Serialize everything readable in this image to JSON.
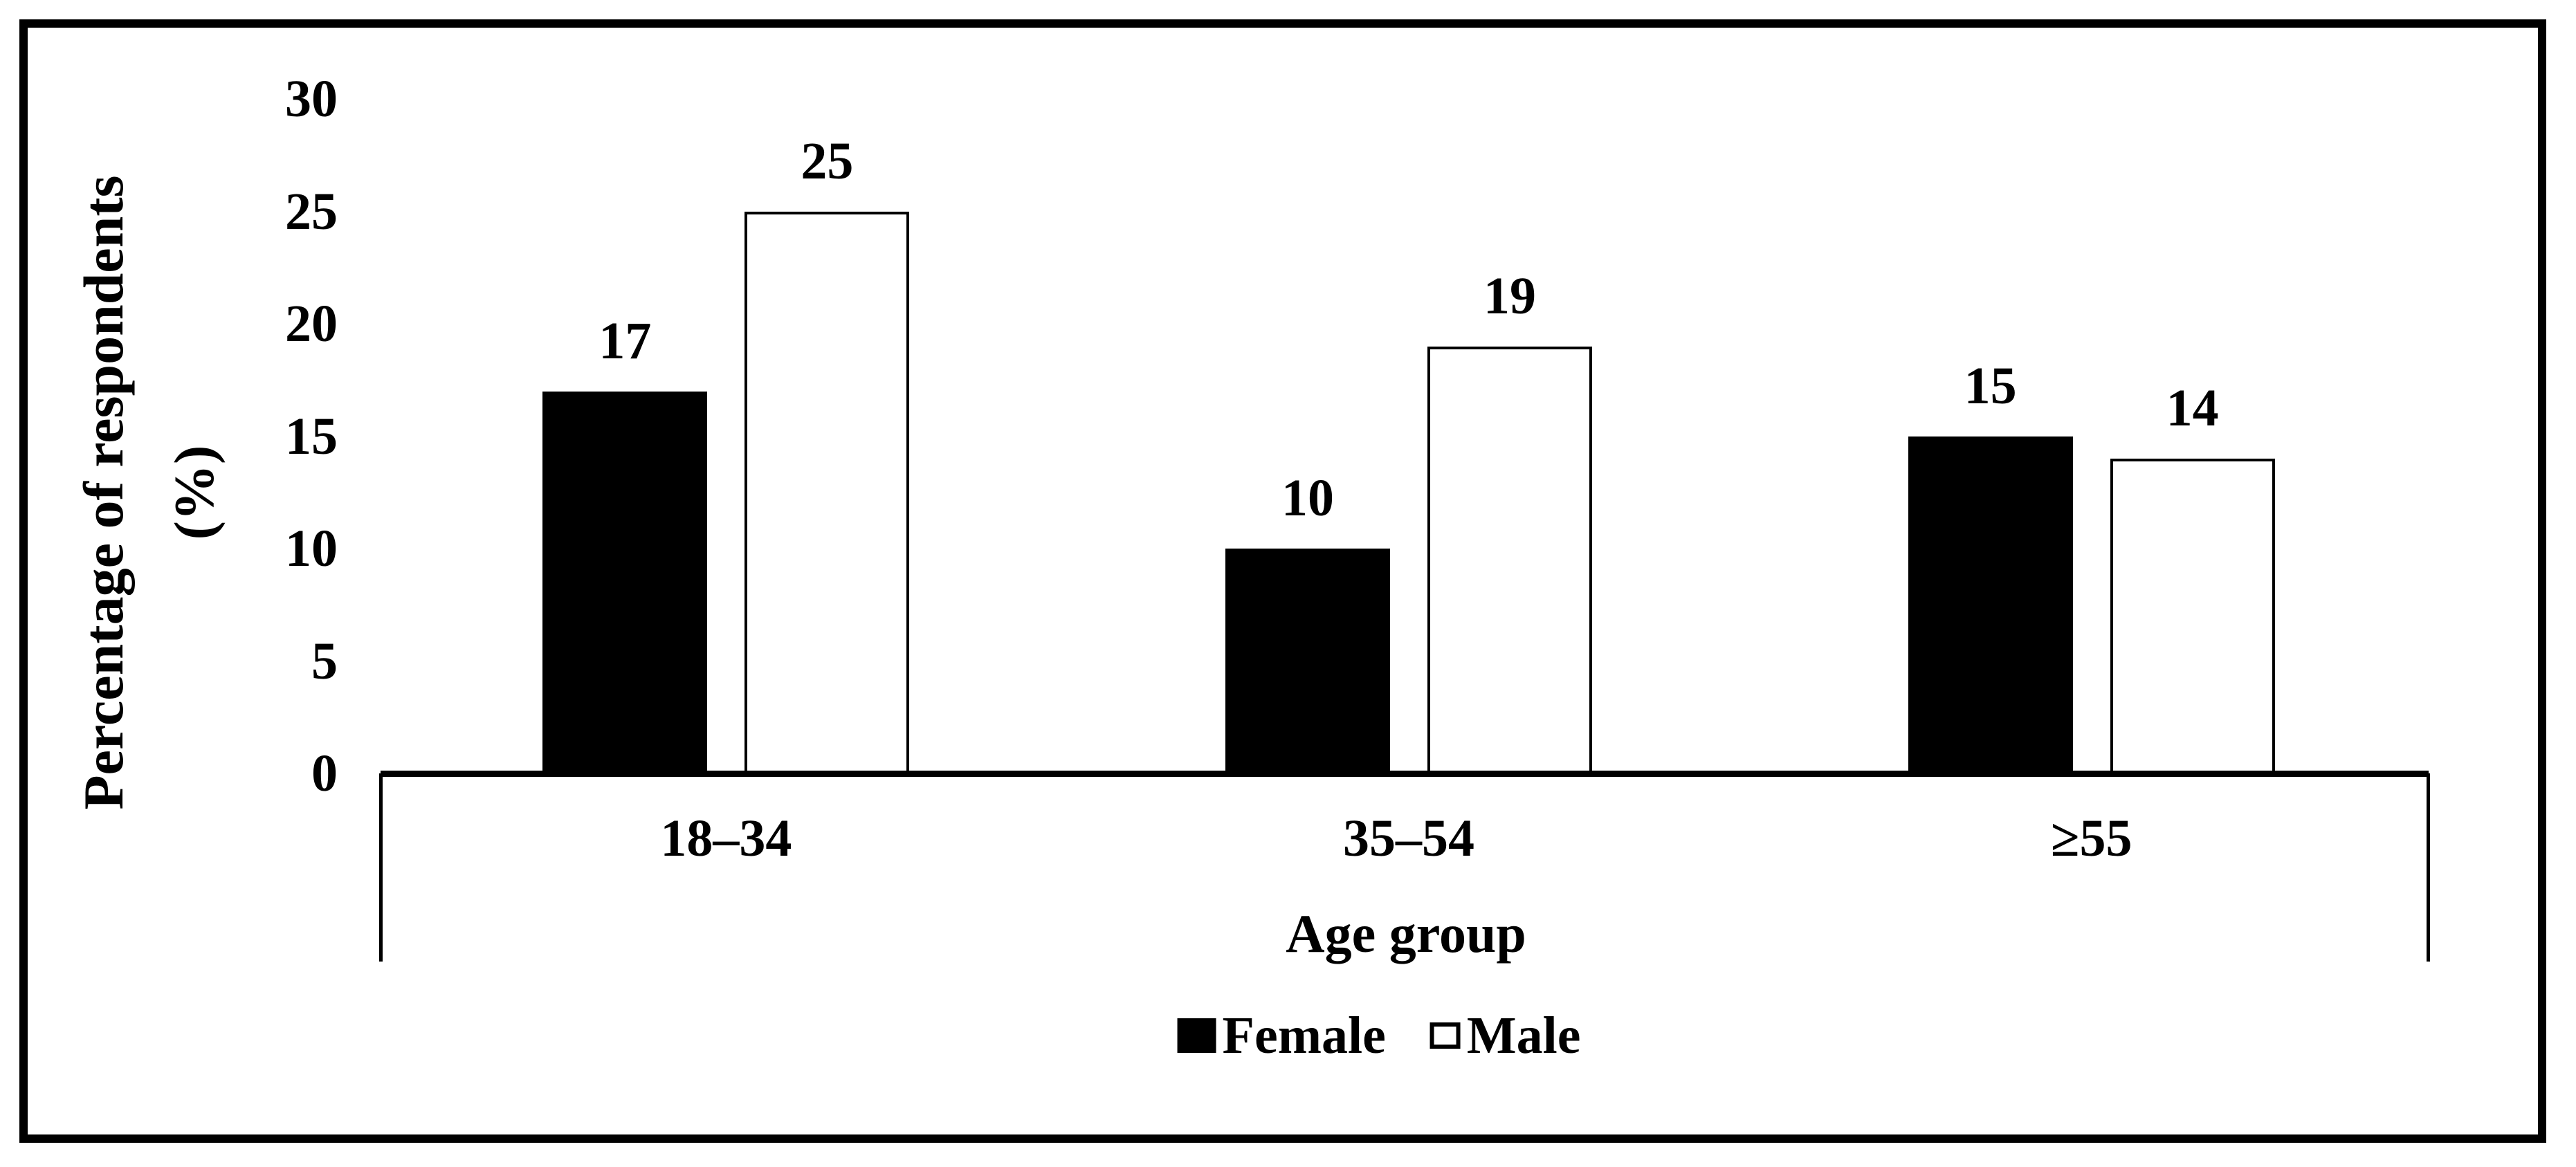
{
  "colors": {
    "ink": "#000000",
    "paper": "#ffffff"
  },
  "chart_data": {
    "type": "bar",
    "title": "",
    "categories": [
      "18–34",
      "35–54",
      "≥55"
    ],
    "series": [
      {
        "name": "Female",
        "values": [
          17,
          10,
          15
        ],
        "fill": "#000000",
        "stroke": "#000000"
      },
      {
        "name": "Male",
        "values": [
          25,
          19,
          14
        ],
        "fill": "#ffffff",
        "stroke": "#000000"
      }
    ],
    "value_labels_shown": true,
    "xlabel": "Age group",
    "ylabel_lines": [
      "Percentage of respondents",
      "(%)"
    ],
    "y_ticks": [
      30,
      25,
      20,
      15,
      10,
      5,
      0
    ],
    "ylim": [
      0,
      30
    ],
    "grid": false,
    "legend_position": "bottom-center"
  }
}
